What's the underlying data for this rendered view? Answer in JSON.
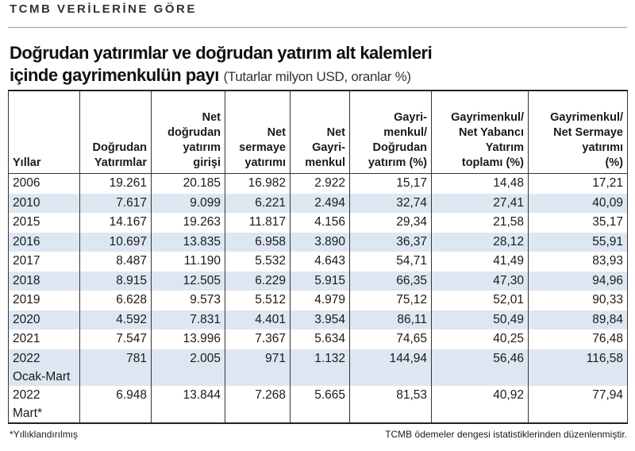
{
  "header": {
    "kicker": "TCMB VERİLERİNE GÖRE",
    "title_line1": "Doğrudan yatırımlar ve doğrudan yatırım alt kalemleri",
    "title_line2": "içinde gayrimenkulün payı",
    "subtitle": "(Tutarlar milyon USD, oranlar %)"
  },
  "table": {
    "columns": [
      [
        "Yıllar"
      ],
      [
        "Doğrudan",
        "Yatırımlar"
      ],
      [
        "Net",
        "doğrudan",
        "yatırım",
        "girişi"
      ],
      [
        "Net",
        "sermaye",
        "yatırımı"
      ],
      [
        "Net",
        "Gayri-",
        "menkul"
      ],
      [
        "Gayri-",
        "menkul/",
        "Doğrudan",
        "yatırım (%)"
      ],
      [
        "Gayrimenkul/",
        "Net Yabancı",
        "Yatırım",
        "toplamı (%)"
      ],
      [
        "Gayrimenkul/",
        "Net Sermaye",
        "yatırımı",
        "(%)"
      ]
    ],
    "rows": [
      {
        "year": [
          "2006"
        ],
        "cells": [
          "19.261",
          "20.185",
          "16.982",
          "2.922",
          "15,17",
          "14,48",
          "17,21"
        ]
      },
      {
        "year": [
          "2010"
        ],
        "cells": [
          "7.617",
          "9.099",
          "6.221",
          "2.494",
          "32,74",
          "27,41",
          "40,09"
        ]
      },
      {
        "year": [
          "2015"
        ],
        "cells": [
          "14.167",
          "19.263",
          "11.817",
          "4.156",
          "29,34",
          "21,58",
          "35,17"
        ]
      },
      {
        "year": [
          "2016"
        ],
        "cells": [
          "10.697",
          "13.835",
          "6.958",
          "3.890",
          "36,37",
          "28,12",
          "55,91"
        ]
      },
      {
        "year": [
          "2017"
        ],
        "cells": [
          "8.487",
          "11.190",
          "5.532",
          "4.643",
          "54,71",
          "41,49",
          "83,93"
        ]
      },
      {
        "year": [
          "2018"
        ],
        "cells": [
          "8.915",
          "12.505",
          "6.229",
          "5.915",
          "66,35",
          "47,30",
          "94,96"
        ]
      },
      {
        "year": [
          "2019"
        ],
        "cells": [
          "6.628",
          "9.573",
          "5.512",
          "4.979",
          "75,12",
          "52,01",
          "90,33"
        ]
      },
      {
        "year": [
          "2020"
        ],
        "cells": [
          "4.592",
          "7.831",
          "4.401",
          "3.954",
          "86,11",
          "50,49",
          "89,84"
        ]
      },
      {
        "year": [
          "2021"
        ],
        "cells": [
          "7.547",
          "13.996",
          "7.367",
          "5.634",
          "74,65",
          "40,25",
          "76,48"
        ]
      },
      {
        "year": [
          "2022",
          "Ocak-Mart"
        ],
        "cells": [
          "781",
          "2.005",
          "971",
          "1.132",
          "144,94",
          "56,46",
          "116,58"
        ]
      },
      {
        "year": [
          "2022",
          "Mart*"
        ],
        "cells": [
          "6.948",
          "13.844",
          "7.268",
          "5.665",
          "81,53",
          "40,92",
          "77,94"
        ]
      }
    ]
  },
  "footer": {
    "note": "*Yıllıklandırılmış",
    "source": "TCMB ödemeler dengesi istatistiklerinden düzenlenmiştir."
  }
}
